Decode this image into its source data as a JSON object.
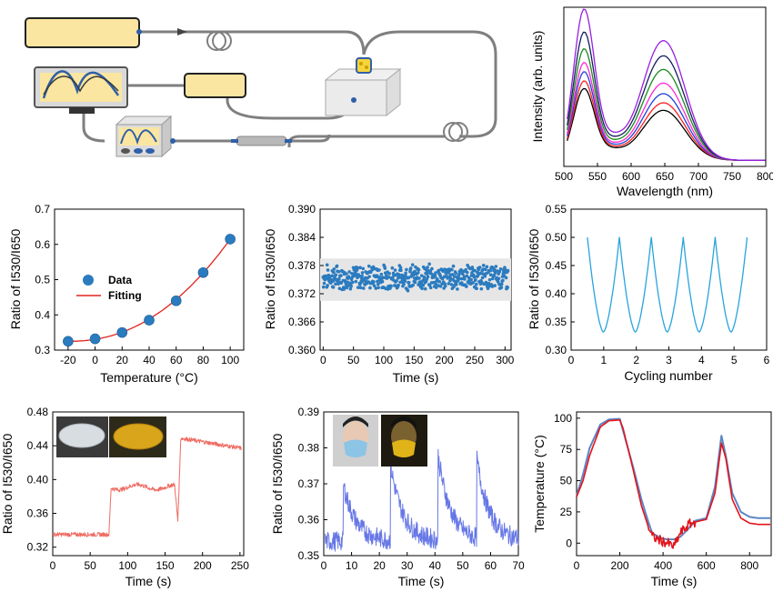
{
  "colors": {
    "box_fill": "#fbe6a1",
    "fiber": "#7f7f7f",
    "blue": "#2f5fa8",
    "fit_red": "#e0231d",
    "data_blue": "#2b7bbf",
    "cyc_blue": "#29a3df",
    "trace_red": "#ef6b62",
    "trace_purple": "#6677e6",
    "sim_blue": "#5b87c5",
    "exp_red": "#e3141b"
  },
  "chart_data": [
    {
      "id": "spectra",
      "type": "line",
      "xlabel": "Wavelength (nm)",
      "ylabel": "Intensity (arb. units)",
      "xlim": [
        500,
        800
      ],
      "xticks": [
        500,
        550,
        600,
        650,
        700,
        750,
        800
      ],
      "series": [
        {
          "color": "#000000",
          "peak1": 0.47,
          "peak2": 0.33
        },
        {
          "color": "#ff1f1f",
          "peak1": 0.52,
          "peak2": 0.38
        },
        {
          "color": "#2340d8",
          "peak1": 0.58,
          "peak2": 0.44
        },
        {
          "color": "#ff2ad4",
          "peak1": 0.64,
          "peak2": 0.51
        },
        {
          "color": "#1e8a1e",
          "peak1": 0.73,
          "peak2": 0.6
        },
        {
          "color": "#131e5c",
          "peak1": 0.84,
          "peak2": 0.69
        },
        {
          "color": "#9a1ee0",
          "peak1": 0.99,
          "peak2": 0.79
        }
      ]
    },
    {
      "id": "ratio_temp",
      "type": "scatter",
      "xlabel": "Temperature (°C)",
      "ylabel": "Ratio of I530/I650",
      "xlim": [
        -30,
        110
      ],
      "ylim": [
        0.3,
        0.7
      ],
      "xticks": [
        -20,
        0,
        20,
        40,
        60,
        80,
        100
      ],
      "yticks": [
        0.3,
        0.4,
        0.5,
        0.6,
        0.7
      ],
      "legend": [
        "Data",
        "Fitting"
      ],
      "x": [
        -20,
        0,
        20,
        40,
        60,
        80,
        100
      ],
      "y": [
        0.325,
        0.332,
        0.35,
        0.385,
        0.44,
        0.52,
        0.615
      ]
    },
    {
      "id": "stability",
      "type": "scatter",
      "xlabel": "Time (s)",
      "ylabel": "Ratio of I530/I650",
      "xlim": [
        -5,
        310
      ],
      "ylim": [
        0.36,
        0.39
      ],
      "xticks": [
        0,
        50,
        100,
        150,
        200,
        250,
        300
      ],
      "yticks": [
        0.36,
        0.366,
        0.372,
        0.378,
        0.384,
        0.39
      ],
      "band": [
        0.3705,
        0.3795
      ],
      "mean": 0.3755,
      "spread": 0.0022
    },
    {
      "id": "cycling",
      "type": "line",
      "xlabel": "Cycling number",
      "ylabel": "Ratio of I530/I650",
      "xlim": [
        0,
        6
      ],
      "ylim": [
        0.3,
        0.55
      ],
      "xticks": [
        0,
        1,
        2,
        3,
        4,
        5,
        6
      ],
      "yticks": [
        0.3,
        0.35,
        0.4,
        0.45,
        0.5,
        0.55
      ],
      "max": 0.5,
      "min": 0.332,
      "start": 0.5,
      "end": 5.4
    },
    {
      "id": "liquid",
      "type": "line",
      "xlabel": "Time (s)",
      "ylabel": "Ratio of I530/I650",
      "xlim": [
        0,
        255
      ],
      "ylim": [
        0.31,
        0.48
      ],
      "xticks": [
        0,
        50,
        100,
        150,
        200,
        250
      ],
      "yticks": [
        0.32,
        0.36,
        0.4,
        0.44,
        0.48
      ],
      "segments": [
        {
          "x0": 0,
          "x1": 75,
          "level": 0.335
        },
        {
          "x0": 75,
          "x1": 163,
          "level": 0.391
        },
        {
          "x0": 163,
          "x1": 170,
          "level": 0.355
        },
        {
          "x0": 170,
          "x1": 252,
          "level": 0.443
        }
      ]
    },
    {
      "id": "breathing",
      "type": "line",
      "xlabel": "Time (s)",
      "ylabel": "Ratio of I530/I650",
      "xlim": [
        0,
        70
      ],
      "ylim": [
        0.35,
        0.39
      ],
      "xticks": [
        0,
        10,
        20,
        30,
        40,
        50,
        60,
        70
      ],
      "yticks": [
        0.35,
        0.36,
        0.37,
        0.38,
        0.39
      ],
      "peaks": [
        {
          "t": 7,
          "v": 0.37
        },
        {
          "t": 24,
          "v": 0.375
        },
        {
          "t": 41,
          "v": 0.378
        },
        {
          "t": 55,
          "v": 0.376
        }
      ]
    },
    {
      "id": "temperature",
      "type": "line",
      "xlabel": "Time (s)",
      "ylabel": "Temperature (°C)",
      "xlim": [
        0,
        900
      ],
      "ylim": [
        -10,
        105
      ],
      "xticks": [
        0,
        200,
        400,
        600,
        800
      ],
      "yticks": [
        0,
        25,
        50,
        75,
        100
      ],
      "series": [
        {
          "name": "",
          "color": "#5b87c5",
          "x": [
            0,
            30,
            60,
            110,
            150,
            200,
            215,
            260,
            300,
            330,
            350,
            390,
            420,
            450,
            480,
            520,
            550,
            600,
            640,
            670,
            690,
            720,
            760,
            800,
            840,
            900
          ],
          "y": [
            38,
            55,
            76,
            95,
            99,
            99.5,
            90,
            62,
            35,
            18,
            8,
            4,
            3,
            3,
            5,
            12,
            18,
            20,
            45,
            86,
            70,
            40,
            25,
            21,
            20,
            20
          ]
        },
        {
          "name": "",
          "color": "#e3141b",
          "x": [
            0,
            30,
            60,
            110,
            150,
            200,
            215,
            260,
            300,
            330,
            350,
            390,
            420,
            450,
            480,
            520,
            550,
            600,
            640,
            670,
            690,
            720,
            760,
            800,
            840,
            900
          ],
          "y": [
            37,
            50,
            70,
            93,
            98,
            98.5,
            92,
            60,
            30,
            14,
            5,
            2,
            0,
            -3,
            8,
            15,
            17,
            19,
            40,
            80,
            68,
            35,
            20,
            16,
            15,
            15
          ]
        }
      ]
    }
  ]
}
